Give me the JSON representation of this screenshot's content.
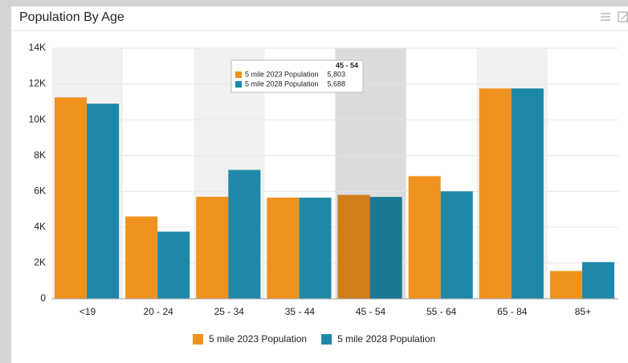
{
  "chart_data": {
    "type": "bar",
    "title": "Population By Age",
    "categories": [
      "<19",
      "20 - 24",
      "25 - 34",
      "35 - 44",
      "45 - 54",
      "55 - 64",
      "65 - 84",
      "85+"
    ],
    "series": [
      {
        "name": "5 mile 2023 Population",
        "color": "#f0921e",
        "values": [
          11250,
          4600,
          5700,
          5650,
          5803,
          6850,
          11750,
          1550
        ]
      },
      {
        "name": "5 mile 2028 Population",
        "color": "#1f88a8",
        "values": [
          10900,
          3750,
          7200,
          5650,
          5688,
          6000,
          11750,
          2050
        ]
      }
    ],
    "ylim": [
      0,
      14000
    ],
    "yticks": [
      0,
      {
        "value": 2000,
        "label": "2K"
      },
      {
        "value": 4000,
        "label": "4K"
      },
      {
        "value": 6000,
        "label": "6K"
      },
      {
        "value": 8000,
        "label": "8K"
      },
      {
        "value": 10000,
        "label": "10K"
      },
      {
        "value": 12000,
        "label": "12K"
      },
      {
        "value": 14000,
        "label": "14K"
      }
    ],
    "grid": true,
    "legend": "bottom",
    "tooltip": {
      "title": "45 - 54",
      "rows": [
        {
          "name": "5 mile 2023 Population",
          "value": 5803,
          "label": "5,803"
        },
        {
          "name": "5 mile 2028 Population",
          "value": 5688,
          "label": "5,688"
        }
      ]
    }
  }
}
